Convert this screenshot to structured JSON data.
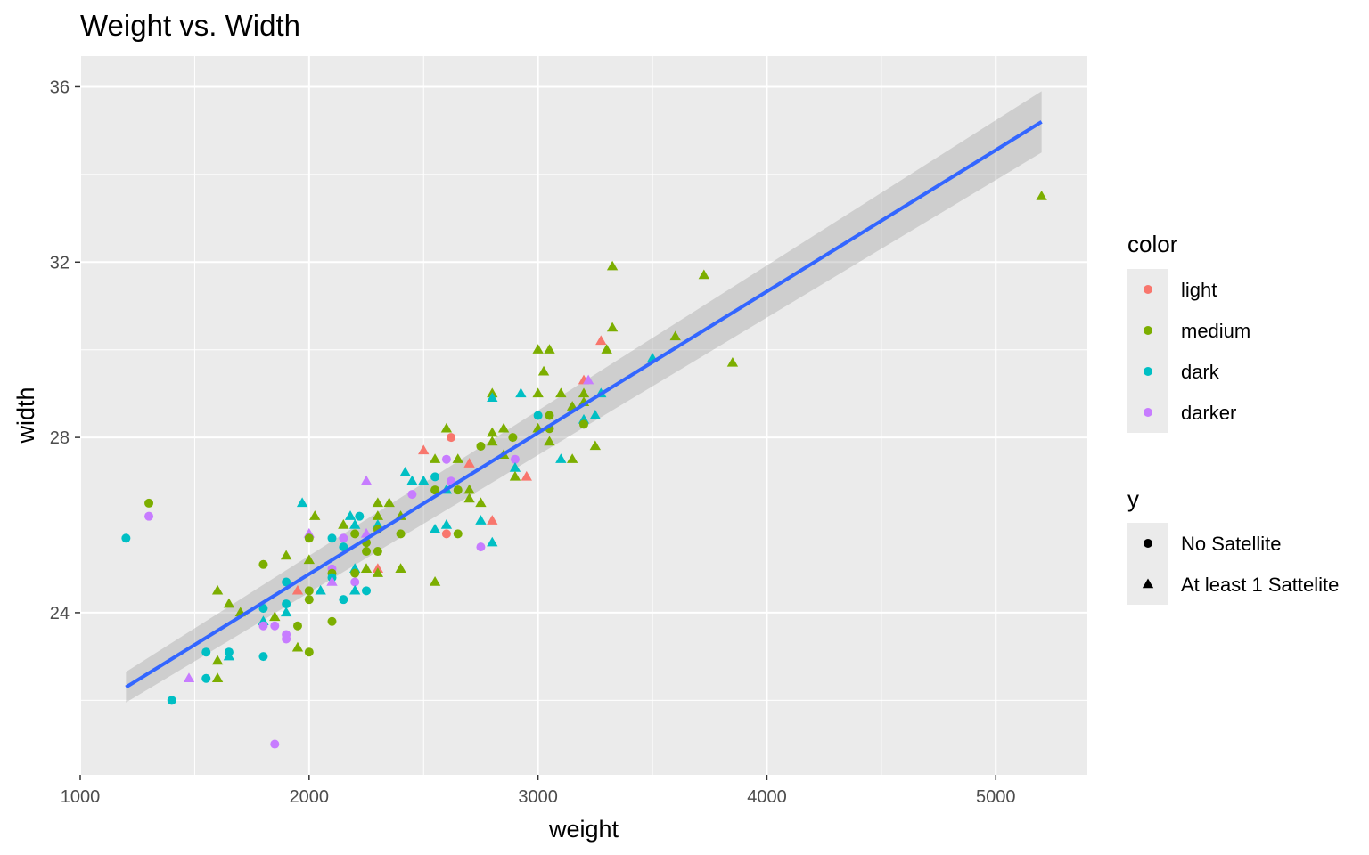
{
  "chart_data": {
    "type": "scatter",
    "title": "Weight vs. Width",
    "xlabel": "weight",
    "ylabel": "width",
    "xlim": [
      1000,
      5400
    ],
    "ylim": [
      20.3,
      36.7
    ],
    "x_ticks": [
      1000,
      2000,
      3000,
      4000,
      5000
    ],
    "y_ticks": [
      24,
      28,
      32,
      36
    ],
    "grid": true,
    "legend_position": "right",
    "colors": {
      "light": "#F8766D",
      "medium": "#7CAE00",
      "dark": "#00BFC4",
      "darker": "#C77CFF"
    },
    "line_color": "#3366FF",
    "band_color": "#999999",
    "panel_color": "#EBEBEB",
    "legends": {
      "color": {
        "title": "color",
        "items": [
          "light",
          "medium",
          "dark",
          "darker"
        ]
      },
      "shape": {
        "title": "y",
        "items": [
          "No Satellite",
          "At least 1 Sattelite"
        ]
      }
    },
    "fit": {
      "type": "linear",
      "x": [
        1200,
        5200
      ],
      "y": [
        22.3,
        35.2
      ],
      "ci_low": [
        21.95,
        34.5
      ],
      "ci_high": [
        22.65,
        35.9
      ]
    },
    "points": [
      {
        "x": 1200,
        "y": 25.7,
        "color": "dark",
        "shape": "circle"
      },
      {
        "x": 1300,
        "y": 26.5,
        "color": "medium",
        "shape": "circle"
      },
      {
        "x": 1300,
        "y": 26.2,
        "color": "darker",
        "shape": "circle"
      },
      {
        "x": 1400,
        "y": 22.0,
        "color": "dark",
        "shape": "circle"
      },
      {
        "x": 1475,
        "y": 22.5,
        "color": "darker",
        "shape": "triangle"
      },
      {
        "x": 1550,
        "y": 23.1,
        "color": "dark",
        "shape": "circle"
      },
      {
        "x": 1550,
        "y": 22.5,
        "color": "dark",
        "shape": "circle"
      },
      {
        "x": 1600,
        "y": 24.5,
        "color": "medium",
        "shape": "triangle"
      },
      {
        "x": 1600,
        "y": 22.9,
        "color": "medium",
        "shape": "triangle"
      },
      {
        "x": 1600,
        "y": 22.5,
        "color": "medium",
        "shape": "triangle"
      },
      {
        "x": 1650,
        "y": 24.2,
        "color": "medium",
        "shape": "triangle"
      },
      {
        "x": 1650,
        "y": 23.1,
        "color": "dark",
        "shape": "circle"
      },
      {
        "x": 1650,
        "y": 23.0,
        "color": "dark",
        "shape": "triangle"
      },
      {
        "x": 1700,
        "y": 24.0,
        "color": "medium",
        "shape": "triangle"
      },
      {
        "x": 1800,
        "y": 25.1,
        "color": "medium",
        "shape": "circle"
      },
      {
        "x": 1800,
        "y": 24.1,
        "color": "dark",
        "shape": "circle"
      },
      {
        "x": 1800,
        "y": 23.8,
        "color": "dark",
        "shape": "triangle"
      },
      {
        "x": 1800,
        "y": 23.7,
        "color": "darker",
        "shape": "circle"
      },
      {
        "x": 1800,
        "y": 23.0,
        "color": "dark",
        "shape": "circle"
      },
      {
        "x": 1850,
        "y": 23.9,
        "color": "medium",
        "shape": "triangle"
      },
      {
        "x": 1850,
        "y": 23.7,
        "color": "darker",
        "shape": "circle"
      },
      {
        "x": 1850,
        "y": 21.0,
        "color": "darker",
        "shape": "circle"
      },
      {
        "x": 1900,
        "y": 25.3,
        "color": "medium",
        "shape": "triangle"
      },
      {
        "x": 1900,
        "y": 24.7,
        "color": "dark",
        "shape": "circle"
      },
      {
        "x": 1900,
        "y": 24.2,
        "color": "dark",
        "shape": "circle"
      },
      {
        "x": 1900,
        "y": 24.0,
        "color": "dark",
        "shape": "triangle"
      },
      {
        "x": 1900,
        "y": 23.5,
        "color": "darker",
        "shape": "circle"
      },
      {
        "x": 1900,
        "y": 23.4,
        "color": "darker",
        "shape": "circle"
      },
      {
        "x": 1950,
        "y": 24.5,
        "color": "light",
        "shape": "triangle"
      },
      {
        "x": 1950,
        "y": 23.7,
        "color": "medium",
        "shape": "circle"
      },
      {
        "x": 1950,
        "y": 23.2,
        "color": "medium",
        "shape": "triangle"
      },
      {
        "x": 1970,
        "y": 26.5,
        "color": "dark",
        "shape": "triangle"
      },
      {
        "x": 2000,
        "y": 25.8,
        "color": "darker",
        "shape": "triangle"
      },
      {
        "x": 2000,
        "y": 25.7,
        "color": "medium",
        "shape": "circle"
      },
      {
        "x": 2000,
        "y": 25.2,
        "color": "medium",
        "shape": "triangle"
      },
      {
        "x": 2000,
        "y": 24.5,
        "color": "medium",
        "shape": "circle"
      },
      {
        "x": 2000,
        "y": 24.3,
        "color": "medium",
        "shape": "circle"
      },
      {
        "x": 2000,
        "y": 23.1,
        "color": "medium",
        "shape": "circle"
      },
      {
        "x": 2025,
        "y": 26.2,
        "color": "medium",
        "shape": "triangle"
      },
      {
        "x": 2050,
        "y": 24.5,
        "color": "dark",
        "shape": "triangle"
      },
      {
        "x": 2100,
        "y": 25.7,
        "color": "dark",
        "shape": "circle"
      },
      {
        "x": 2100,
        "y": 25.0,
        "color": "darker",
        "shape": "circle"
      },
      {
        "x": 2100,
        "y": 24.9,
        "color": "medium",
        "shape": "circle"
      },
      {
        "x": 2100,
        "y": 24.8,
        "color": "dark",
        "shape": "circle"
      },
      {
        "x": 2100,
        "y": 24.7,
        "color": "darker",
        "shape": "triangle"
      },
      {
        "x": 2100,
        "y": 23.8,
        "color": "medium",
        "shape": "circle"
      },
      {
        "x": 2150,
        "y": 26.0,
        "color": "medium",
        "shape": "triangle"
      },
      {
        "x": 2150,
        "y": 25.7,
        "color": "darker",
        "shape": "circle"
      },
      {
        "x": 2150,
        "y": 25.5,
        "color": "dark",
        "shape": "circle"
      },
      {
        "x": 2150,
        "y": 24.3,
        "color": "dark",
        "shape": "circle"
      },
      {
        "x": 2180,
        "y": 26.2,
        "color": "dark",
        "shape": "triangle"
      },
      {
        "x": 2200,
        "y": 26.0,
        "color": "dark",
        "shape": "triangle"
      },
      {
        "x": 2200,
        "y": 25.8,
        "color": "medium",
        "shape": "circle"
      },
      {
        "x": 2200,
        "y": 25.0,
        "color": "dark",
        "shape": "triangle"
      },
      {
        "x": 2200,
        "y": 24.9,
        "color": "medium",
        "shape": "circle"
      },
      {
        "x": 2200,
        "y": 24.7,
        "color": "darker",
        "shape": "circle"
      },
      {
        "x": 2200,
        "y": 24.5,
        "color": "dark",
        "shape": "triangle"
      },
      {
        "x": 2220,
        "y": 26.2,
        "color": "dark",
        "shape": "circle"
      },
      {
        "x": 2250,
        "y": 27.0,
        "color": "darker",
        "shape": "triangle"
      },
      {
        "x": 2250,
        "y": 25.8,
        "color": "darker",
        "shape": "triangle"
      },
      {
        "x": 2250,
        "y": 25.6,
        "color": "medium",
        "shape": "circle"
      },
      {
        "x": 2250,
        "y": 25.4,
        "color": "medium",
        "shape": "circle"
      },
      {
        "x": 2250,
        "y": 25.0,
        "color": "medium",
        "shape": "triangle"
      },
      {
        "x": 2250,
        "y": 24.5,
        "color": "dark",
        "shape": "circle"
      },
      {
        "x": 2300,
        "y": 26.5,
        "color": "medium",
        "shape": "triangle"
      },
      {
        "x": 2300,
        "y": 26.2,
        "color": "medium",
        "shape": "triangle"
      },
      {
        "x": 2300,
        "y": 26.0,
        "color": "dark",
        "shape": "triangle"
      },
      {
        "x": 2300,
        "y": 25.9,
        "color": "medium",
        "shape": "circle"
      },
      {
        "x": 2300,
        "y": 25.4,
        "color": "medium",
        "shape": "circle"
      },
      {
        "x": 2300,
        "y": 25.0,
        "color": "light",
        "shape": "triangle"
      },
      {
        "x": 2300,
        "y": 24.9,
        "color": "medium",
        "shape": "triangle"
      },
      {
        "x": 2350,
        "y": 26.5,
        "color": "medium",
        "shape": "triangle"
      },
      {
        "x": 2400,
        "y": 26.2,
        "color": "medium",
        "shape": "triangle"
      },
      {
        "x": 2400,
        "y": 25.8,
        "color": "medium",
        "shape": "circle"
      },
      {
        "x": 2400,
        "y": 25.0,
        "color": "medium",
        "shape": "triangle"
      },
      {
        "x": 2420,
        "y": 27.2,
        "color": "dark",
        "shape": "triangle"
      },
      {
        "x": 2450,
        "y": 27.0,
        "color": "dark",
        "shape": "triangle"
      },
      {
        "x": 2450,
        "y": 26.7,
        "color": "darker",
        "shape": "circle"
      },
      {
        "x": 2500,
        "y": 27.7,
        "color": "light",
        "shape": "triangle"
      },
      {
        "x": 2500,
        "y": 27.0,
        "color": "dark",
        "shape": "triangle"
      },
      {
        "x": 2550,
        "y": 27.5,
        "color": "medium",
        "shape": "triangle"
      },
      {
        "x": 2550,
        "y": 27.1,
        "color": "dark",
        "shape": "circle"
      },
      {
        "x": 2550,
        "y": 26.8,
        "color": "medium",
        "shape": "circle"
      },
      {
        "x": 2550,
        "y": 25.9,
        "color": "dark",
        "shape": "triangle"
      },
      {
        "x": 2550,
        "y": 24.7,
        "color": "medium",
        "shape": "triangle"
      },
      {
        "x": 2600,
        "y": 28.2,
        "color": "medium",
        "shape": "triangle"
      },
      {
        "x": 2600,
        "y": 27.5,
        "color": "darker",
        "shape": "circle"
      },
      {
        "x": 2600,
        "y": 26.8,
        "color": "dark",
        "shape": "triangle"
      },
      {
        "x": 2600,
        "y": 26.0,
        "color": "dark",
        "shape": "triangle"
      },
      {
        "x": 2600,
        "y": 25.8,
        "color": "light",
        "shape": "circle"
      },
      {
        "x": 2620,
        "y": 28.0,
        "color": "light",
        "shape": "circle"
      },
      {
        "x": 2620,
        "y": 27.0,
        "color": "darker",
        "shape": "circle"
      },
      {
        "x": 2650,
        "y": 27.5,
        "color": "medium",
        "shape": "triangle"
      },
      {
        "x": 2650,
        "y": 26.8,
        "color": "medium",
        "shape": "circle"
      },
      {
        "x": 2650,
        "y": 25.8,
        "color": "medium",
        "shape": "circle"
      },
      {
        "x": 2700,
        "y": 27.4,
        "color": "light",
        "shape": "triangle"
      },
      {
        "x": 2700,
        "y": 26.8,
        "color": "medium",
        "shape": "triangle"
      },
      {
        "x": 2700,
        "y": 26.6,
        "color": "medium",
        "shape": "triangle"
      },
      {
        "x": 2750,
        "y": 27.8,
        "color": "medium",
        "shape": "circle"
      },
      {
        "x": 2750,
        "y": 26.5,
        "color": "medium",
        "shape": "triangle"
      },
      {
        "x": 2750,
        "y": 26.1,
        "color": "dark",
        "shape": "triangle"
      },
      {
        "x": 2750,
        "y": 25.5,
        "color": "darker",
        "shape": "circle"
      },
      {
        "x": 2800,
        "y": 29.0,
        "color": "medium",
        "shape": "triangle"
      },
      {
        "x": 2800,
        "y": 28.9,
        "color": "dark",
        "shape": "triangle"
      },
      {
        "x": 2800,
        "y": 28.1,
        "color": "medium",
        "shape": "triangle"
      },
      {
        "x": 2800,
        "y": 27.9,
        "color": "medium",
        "shape": "triangle"
      },
      {
        "x": 2800,
        "y": 26.1,
        "color": "light",
        "shape": "triangle"
      },
      {
        "x": 2800,
        "y": 25.6,
        "color": "dark",
        "shape": "triangle"
      },
      {
        "x": 2850,
        "y": 28.2,
        "color": "medium",
        "shape": "triangle"
      },
      {
        "x": 2850,
        "y": 27.6,
        "color": "medium",
        "shape": "triangle"
      },
      {
        "x": 2890,
        "y": 28.0,
        "color": "medium",
        "shape": "circle"
      },
      {
        "x": 2900,
        "y": 27.5,
        "color": "darker",
        "shape": "circle"
      },
      {
        "x": 2900,
        "y": 27.3,
        "color": "dark",
        "shape": "triangle"
      },
      {
        "x": 2900,
        "y": 27.1,
        "color": "medium",
        "shape": "triangle"
      },
      {
        "x": 2925,
        "y": 29.0,
        "color": "dark",
        "shape": "triangle"
      },
      {
        "x": 2950,
        "y": 27.1,
        "color": "light",
        "shape": "triangle"
      },
      {
        "x": 3000,
        "y": 30.0,
        "color": "medium",
        "shape": "triangle"
      },
      {
        "x": 3000,
        "y": 29.0,
        "color": "medium",
        "shape": "triangle"
      },
      {
        "x": 3000,
        "y": 28.5,
        "color": "dark",
        "shape": "circle"
      },
      {
        "x": 3000,
        "y": 28.2,
        "color": "medium",
        "shape": "triangle"
      },
      {
        "x": 3025,
        "y": 29.5,
        "color": "medium",
        "shape": "triangle"
      },
      {
        "x": 3050,
        "y": 30.0,
        "color": "medium",
        "shape": "triangle"
      },
      {
        "x": 3050,
        "y": 28.5,
        "color": "medium",
        "shape": "circle"
      },
      {
        "x": 3050,
        "y": 28.2,
        "color": "medium",
        "shape": "circle"
      },
      {
        "x": 3050,
        "y": 27.9,
        "color": "medium",
        "shape": "triangle"
      },
      {
        "x": 3100,
        "y": 29.0,
        "color": "medium",
        "shape": "triangle"
      },
      {
        "x": 3100,
        "y": 27.5,
        "color": "dark",
        "shape": "triangle"
      },
      {
        "x": 3150,
        "y": 28.7,
        "color": "medium",
        "shape": "triangle"
      },
      {
        "x": 3150,
        "y": 27.5,
        "color": "medium",
        "shape": "triangle"
      },
      {
        "x": 3200,
        "y": 29.3,
        "color": "light",
        "shape": "triangle"
      },
      {
        "x": 3200,
        "y": 29.0,
        "color": "medium",
        "shape": "triangle"
      },
      {
        "x": 3200,
        "y": 28.8,
        "color": "medium",
        "shape": "triangle"
      },
      {
        "x": 3200,
        "y": 28.4,
        "color": "dark",
        "shape": "triangle"
      },
      {
        "x": 3200,
        "y": 28.3,
        "color": "medium",
        "shape": "circle"
      },
      {
        "x": 3220,
        "y": 29.3,
        "color": "darker",
        "shape": "triangle"
      },
      {
        "x": 3250,
        "y": 28.5,
        "color": "dark",
        "shape": "triangle"
      },
      {
        "x": 3250,
        "y": 27.8,
        "color": "medium",
        "shape": "triangle"
      },
      {
        "x": 3275,
        "y": 30.2,
        "color": "light",
        "shape": "triangle"
      },
      {
        "x": 3275,
        "y": 29.0,
        "color": "dark",
        "shape": "triangle"
      },
      {
        "x": 3300,
        "y": 30.0,
        "color": "medium",
        "shape": "triangle"
      },
      {
        "x": 3325,
        "y": 31.9,
        "color": "medium",
        "shape": "triangle"
      },
      {
        "x": 3325,
        "y": 30.5,
        "color": "medium",
        "shape": "triangle"
      },
      {
        "x": 3500,
        "y": 29.8,
        "color": "dark",
        "shape": "triangle"
      },
      {
        "x": 3600,
        "y": 30.3,
        "color": "medium",
        "shape": "triangle"
      },
      {
        "x": 3725,
        "y": 31.7,
        "color": "medium",
        "shape": "triangle"
      },
      {
        "x": 3850,
        "y": 29.7,
        "color": "medium",
        "shape": "triangle"
      },
      {
        "x": 5200,
        "y": 33.5,
        "color": "medium",
        "shape": "triangle"
      }
    ]
  }
}
